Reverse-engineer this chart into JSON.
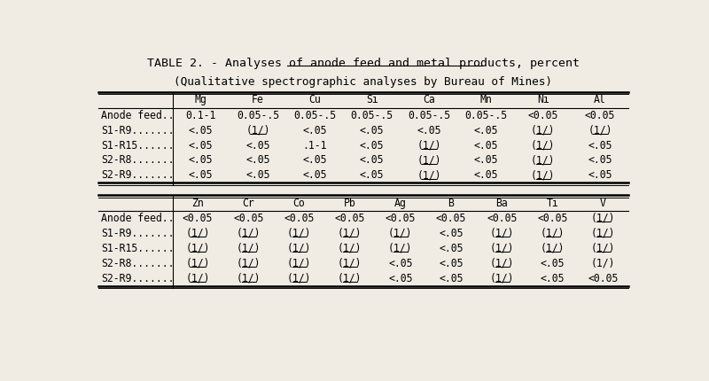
{
  "title": "TABLE 2. - Analyses of anode feed and metal products, percent",
  "subtitle": "(Qualitative spectrographic analyses by Bureau of Mines)",
  "bg_color": "#f0ece4",
  "table1": {
    "headers": [
      "",
      "Mg",
      "Fe",
      "Cu",
      "Si",
      "Ca",
      "Mn",
      "Ni",
      "Al"
    ],
    "rows": [
      [
        "Anode feed..",
        "0.1-1",
        "0.05-.5",
        "0.05-.5",
        "0.05-.5",
        "0.05-.5",
        "0.05-.5",
        "<0.05",
        "<0.05"
      ],
      [
        "S1-R9.......",
        "<.05",
        "(1/)",
        "<.05",
        "<.05",
        "<.05",
        "<.05",
        "(1/)",
        "(1/)"
      ],
      [
        "S1-R15......",
        "<.05",
        "<.05",
        ".1-1",
        "<.05",
        "(1/)",
        "<.05",
        "(1/)",
        "<.05"
      ],
      [
        "S2-R8.......",
        "<.05",
        "<.05",
        "<.05",
        "<.05",
        "(1/)",
        "<.05",
        "(1/)",
        "<.05"
      ],
      [
        "S2-R9.......",
        "<.05",
        "<.05",
        "<.05",
        "<.05",
        "(1/)",
        "<.05",
        "(1/)",
        "<.05"
      ]
    ],
    "underline_cells": [
      [
        1,
        2
      ],
      [
        1,
        7
      ],
      [
        1,
        8
      ],
      [
        2,
        5
      ],
      [
        2,
        7
      ],
      [
        3,
        5
      ],
      [
        3,
        7
      ],
      [
        4,
        5
      ],
      [
        4,
        7
      ]
    ]
  },
  "table2": {
    "headers": [
      "",
      "Zn",
      "Cr",
      "Co",
      "Pb",
      "Ag",
      "B",
      "Ba",
      "Ti",
      "V"
    ],
    "rows": [
      [
        "Anode feed..",
        "<0.05",
        "<0.05",
        "<0.05",
        "<0.05",
        "<0.05",
        "<0.05",
        "<0.05",
        "<0.05",
        "(1/)"
      ],
      [
        "S1-R9.......",
        "(1/)",
        "(1/)",
        "(1/)",
        "(1/)",
        "(1/)",
        "<.05",
        "(1/)",
        "(1/)",
        "(1/)"
      ],
      [
        "S1-R15......",
        "(1/)",
        "(1/)",
        "(1/)",
        "(1/)",
        "(1/)",
        "<.05",
        "(1/)",
        "(1/)",
        "(1/)"
      ],
      [
        "S2-R8.......",
        "(1/)",
        "(1/)",
        "(1/)",
        "(1/)",
        "<.05",
        "<.05",
        "(1/)",
        "<.05",
        "(1/)"
      ],
      [
        "S2-R9.......",
        "(1/)",
        "(1/)",
        "(1/)",
        "(1/)",
        "<.05",
        "<.05",
        "(1/)",
        "<.05",
        "<0.05"
      ]
    ],
    "underline_cells": [
      [
        0,
        9
      ],
      [
        1,
        1
      ],
      [
        1,
        2
      ],
      [
        1,
        3
      ],
      [
        1,
        4
      ],
      [
        1,
        5
      ],
      [
        1,
        7
      ],
      [
        1,
        8
      ],
      [
        1,
        9
      ],
      [
        2,
        1
      ],
      [
        2,
        2
      ],
      [
        2,
        3
      ],
      [
        2,
        4
      ],
      [
        2,
        5
      ],
      [
        2,
        7
      ],
      [
        2,
        8
      ],
      [
        2,
        9
      ],
      [
        3,
        1
      ],
      [
        3,
        2
      ],
      [
        3,
        3
      ],
      [
        3,
        4
      ],
      [
        3,
        7
      ],
      [
        4,
        1
      ],
      [
        4,
        2
      ],
      [
        4,
        3
      ],
      [
        4,
        4
      ],
      [
        4,
        7
      ]
    ]
  }
}
